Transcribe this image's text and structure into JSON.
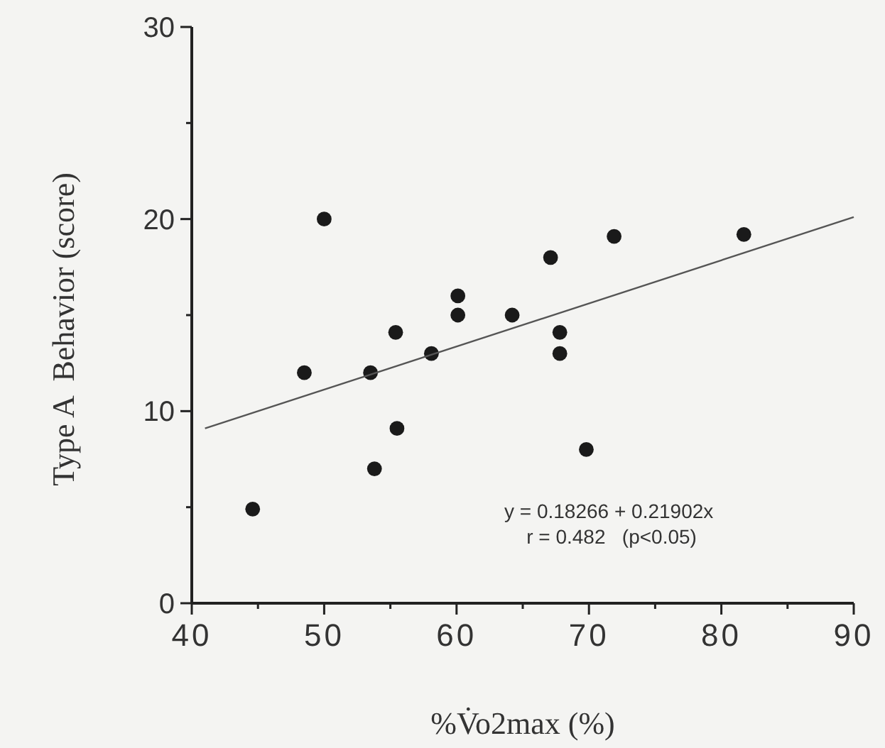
{
  "chart_data": {
    "type": "scatter",
    "xlabel": "%V̇o2max (%)",
    "ylabel": "Type A  Behavior (score)",
    "xlim": [
      40,
      90
    ],
    "ylim": [
      0,
      30
    ],
    "xticks": [
      40,
      {
        "value": 45,
        "label": null
      },
      50,
      {
        "value": 55,
        "label": null
      },
      60,
      {
        "value": 65,
        "label": null
      },
      70,
      {
        "value": 75,
        "label": null
      },
      80,
      {
        "value": 85,
        "label": null
      },
      90
    ],
    "yticks": [
      0,
      {
        "value": 5,
        "label": null
      },
      10,
      {
        "value": 15,
        "label": null
      },
      20,
      {
        "value": 25,
        "label": null
      },
      30
    ],
    "grid": false,
    "marker": "circle",
    "series": [
      {
        "color": "#1a1a1a",
        "x": [
          44.6,
          50,
          48.5,
          53.5,
          55.4,
          53.8,
          55.5,
          58.1,
          60.1,
          60.1,
          64.2,
          67.1,
          67.8,
          67.8,
          69.8,
          71.9,
          81.7
        ],
        "values": [
          4.9,
          20,
          12,
          12,
          14.1,
          7,
          9.1,
          13,
          16,
          15,
          15,
          18,
          14.1,
          13,
          8,
          19.1,
          19.2
        ]
      },
      {
        "type": "line",
        "color": "#555555",
        "line_style": "solid",
        "marker": "none",
        "x": [
          41,
          90
        ],
        "values": [
          9.1,
          20.1
        ]
      }
    ],
    "annotations": [
      "y = 0.18266 + 0.21902x\n r = 0.482   (p<0.05)"
    ]
  }
}
